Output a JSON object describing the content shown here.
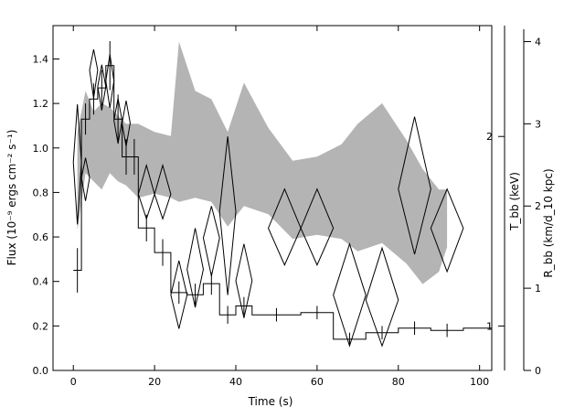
{
  "chart_data": {
    "type": "line",
    "xlabel": "Time (s)",
    "ylabel_left": "Flux (10⁻⁹ ergs cm⁻² s⁻¹)",
    "ylabel_right_inner": "T_bb (keV)",
    "ylabel_right_outer": "R_bb (km/d_10 kpc)",
    "xlim": [
      -5,
      103
    ],
    "ylim_left": [
      0,
      1.55
    ],
    "x_ticks": [
      0,
      20,
      40,
      60,
      80,
      100
    ],
    "y_left_ticks": [
      0.0,
      0.2,
      0.4,
      0.6,
      0.8,
      1.0,
      1.2,
      1.4
    ],
    "y_inner_ticks": [
      1,
      2
    ],
    "y_inner_log_range": [
      0.85,
      3.0
    ],
    "y_outer_ticks": [
      0,
      1,
      2,
      3,
      4
    ],
    "y_outer_range": [
      0,
      4.15
    ],
    "series": [
      {
        "style": "histogram",
        "axis": "left",
        "bins": [
          {
            "x0": 0,
            "x1": 2,
            "y": 0.45,
            "err": 0.1
          },
          {
            "x0": 2,
            "x1": 4,
            "y": 1.13,
            "err": 0.07
          },
          {
            "x0": 4,
            "x1": 6,
            "y": 1.22,
            "err": 0.07
          },
          {
            "x0": 6,
            "x1": 8,
            "y": 1.27,
            "err": 0.08
          },
          {
            "x0": 8,
            "x1": 10,
            "y": 1.37,
            "err": 0.11
          },
          {
            "x0": 10,
            "x1": 12,
            "y": 1.13,
            "err": 0.11
          },
          {
            "x0": 12,
            "x1": 14,
            "y": 0.96,
            "err": 0.08
          },
          {
            "x0": 14,
            "x1": 16,
            "y": 0.96,
            "err": 0.08
          },
          {
            "x0": 16,
            "x1": 20,
            "y": 0.64,
            "err": 0.06
          },
          {
            "x0": 20,
            "x1": 24,
            "y": 0.53,
            "err": 0.06
          },
          {
            "x0": 24,
            "x1": 28,
            "y": 0.35,
            "err": 0.05
          },
          {
            "x0": 28,
            "x1": 32,
            "y": 0.34,
            "err": 0.05
          },
          {
            "x0": 32,
            "x1": 36,
            "y": 0.39,
            "err": 0.05
          },
          {
            "x0": 36,
            "x1": 40,
            "y": 0.25,
            "err": 0.04
          },
          {
            "x0": 40,
            "x1": 44,
            "y": 0.29,
            "err": 0.04
          },
          {
            "x0": 44,
            "x1": 56,
            "y": 0.25,
            "err": 0.03
          },
          {
            "x0": 56,
            "x1": 64,
            "y": 0.26,
            "err": 0.03
          },
          {
            "x0": 64,
            "x1": 72,
            "y": 0.14,
            "err": 0.03
          },
          {
            "x0": 72,
            "x1": 80,
            "y": 0.17,
            "err": 0.03
          },
          {
            "x0": 80,
            "x1": 88,
            "y": 0.19,
            "err": 0.03
          },
          {
            "x0": 88,
            "x1": 96,
            "y": 0.18,
            "err": 0.03
          },
          {
            "x0": 96,
            "x1": 103,
            "y": 0.19,
            "err": 0.0
          }
        ]
      },
      {
        "style": "diamonds",
        "axis": "inner",
        "points": [
          {
            "x": 1,
            "dx": 1,
            "y": 1.82,
            "ylo": 1.45,
            "yhi": 2.25
          },
          {
            "x": 3,
            "dx": 1,
            "y": 1.72,
            "ylo": 1.58,
            "yhi": 1.85
          },
          {
            "x": 5,
            "dx": 1,
            "y": 2.55,
            "ylo": 2.3,
            "yhi": 2.75
          },
          {
            "x": 7,
            "dx": 1,
            "y": 2.4,
            "ylo": 2.2,
            "yhi": 2.6
          },
          {
            "x": 9,
            "dx": 1,
            "y": 2.45,
            "ylo": 2.22,
            "yhi": 2.7
          },
          {
            "x": 11,
            "dx": 1,
            "y": 2.12,
            "ylo": 1.95,
            "yhi": 2.3
          },
          {
            "x": 13,
            "dx": 1,
            "y": 2.1,
            "ylo": 1.93,
            "yhi": 2.28
          },
          {
            "x": 18,
            "dx": 2,
            "y": 1.62,
            "ylo": 1.48,
            "yhi": 1.8
          },
          {
            "x": 22,
            "dx": 2,
            "y": 1.62,
            "ylo": 1.48,
            "yhi": 1.8
          },
          {
            "x": 26,
            "dx": 2,
            "y": 1.12,
            "ylo": 0.99,
            "yhi": 1.27
          },
          {
            "x": 30,
            "dx": 2,
            "y": 1.23,
            "ylo": 1.07,
            "yhi": 1.43
          },
          {
            "x": 34,
            "dx": 2,
            "y": 1.38,
            "ylo": 1.2,
            "yhi": 1.55
          },
          {
            "x": 38,
            "dx": 2,
            "y": 1.52,
            "ylo": 1.12,
            "yhi": 2.0
          },
          {
            "x": 42,
            "dx": 2,
            "y": 1.18,
            "ylo": 1.03,
            "yhi": 1.35
          },
          {
            "x": 52,
            "dx": 4,
            "y": 1.43,
            "ylo": 1.25,
            "yhi": 1.65
          },
          {
            "x": 60,
            "dx": 4,
            "y": 1.43,
            "ylo": 1.25,
            "yhi": 1.65
          },
          {
            "x": 68,
            "dx": 4,
            "y": 1.12,
            "ylo": 0.93,
            "yhi": 1.35
          },
          {
            "x": 76,
            "dx": 4,
            "y": 1.1,
            "ylo": 0.93,
            "yhi": 1.33
          },
          {
            "x": 84,
            "dx": 4,
            "y": 1.65,
            "ylo": 1.3,
            "yhi": 2.15
          },
          {
            "x": 92,
            "dx": 4,
            "y": 1.43,
            "ylo": 1.22,
            "yhi": 1.65
          }
        ]
      },
      {
        "style": "band",
        "axis": "outer",
        "x": [
          1,
          3,
          5,
          7,
          9,
          11,
          13,
          16,
          20,
          24,
          26,
          30,
          34,
          38,
          42,
          48,
          54,
          60,
          66,
          70,
          76,
          82,
          86,
          90,
          92
        ],
        "lower": [
          1.7,
          2.4,
          2.3,
          2.2,
          2.4,
          2.3,
          2.25,
          2.1,
          2.15,
          2.1,
          2.05,
          2.1,
          2.05,
          1.75,
          2.0,
          1.9,
          1.6,
          1.65,
          1.6,
          1.45,
          1.55,
          1.3,
          1.05,
          1.2,
          1.5
        ],
        "upper": [
          2.9,
          3.4,
          3.15,
          3.25,
          3.2,
          3.1,
          3.0,
          3.0,
          2.9,
          2.85,
          4.0,
          3.4,
          3.3,
          2.9,
          3.5,
          2.95,
          2.55,
          2.6,
          2.75,
          3.0,
          3.25,
          2.8,
          2.45,
          2.2,
          2.2
        ]
      }
    ]
  }
}
